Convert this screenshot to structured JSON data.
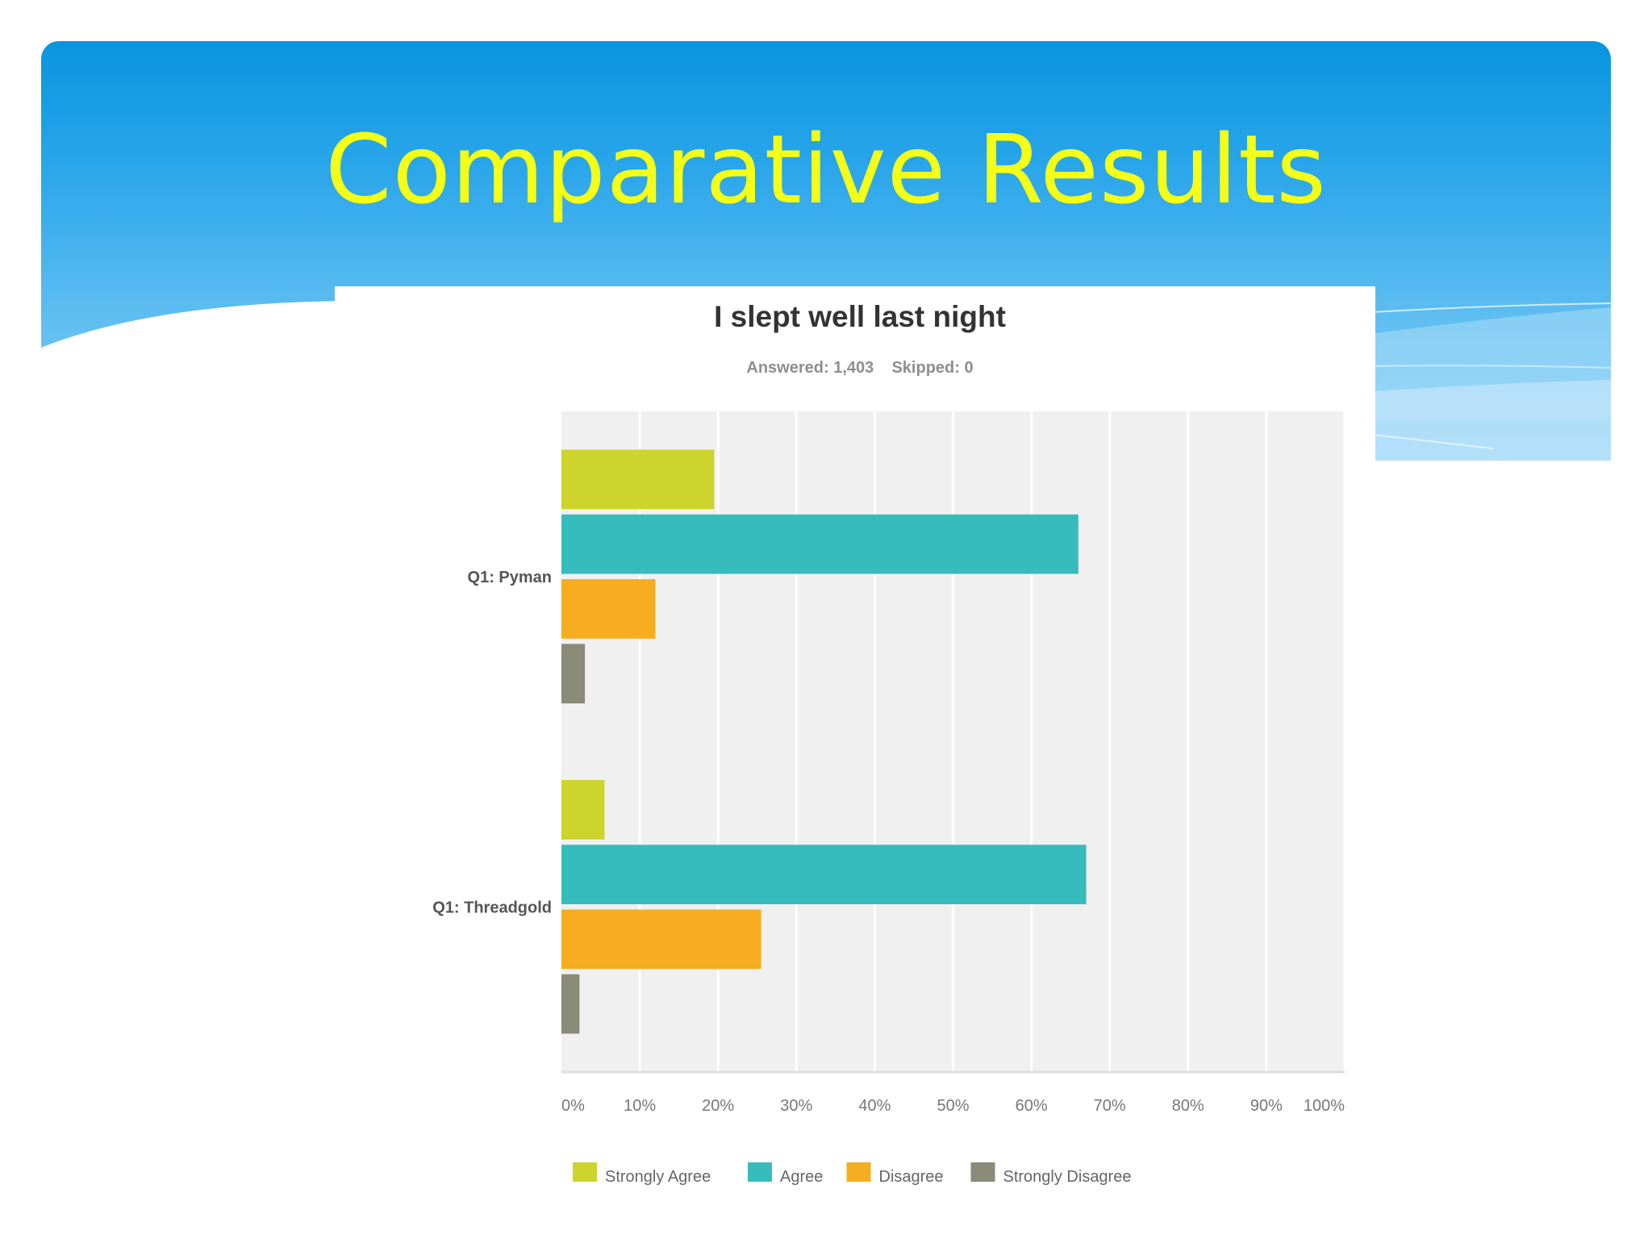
{
  "slide": {
    "title": "Comparative Results"
  },
  "colors": {
    "title": "#f5ff16",
    "banner_top": "#0795e0",
    "banner_bottom": "#8fd2f6",
    "plot_background": "#f1f0f1",
    "gridline": "#ffffff"
  },
  "chart_data": {
    "type": "bar",
    "orientation": "horizontal",
    "title": "I slept well last night",
    "subtitle": "Answered: 1,403    Skipped: 0",
    "categories": [
      "Q1: Pyman",
      "Q1: Threadgold"
    ],
    "series": [
      {
        "name": "Strongly Agree",
        "color": "#cdd42b",
        "values": [
          19.5,
          5.5
        ]
      },
      {
        "name": "Agree",
        "color": "#36bcbd",
        "values": [
          66,
          67
        ]
      },
      {
        "name": "Disagree",
        "color": "#f6ad1f",
        "values": [
          12,
          25.5
        ]
      },
      {
        "name": "Strongly Disagree",
        "color": "#8a8b79",
        "values": [
          3,
          2.3
        ]
      }
    ],
    "x_ticks": [
      "0%",
      "10%",
      "20%",
      "30%",
      "40%",
      "50%",
      "60%",
      "70%",
      "80%",
      "90%",
      "100%"
    ],
    "xlim": [
      0,
      100
    ],
    "grid": true,
    "legend_position": "bottom"
  }
}
